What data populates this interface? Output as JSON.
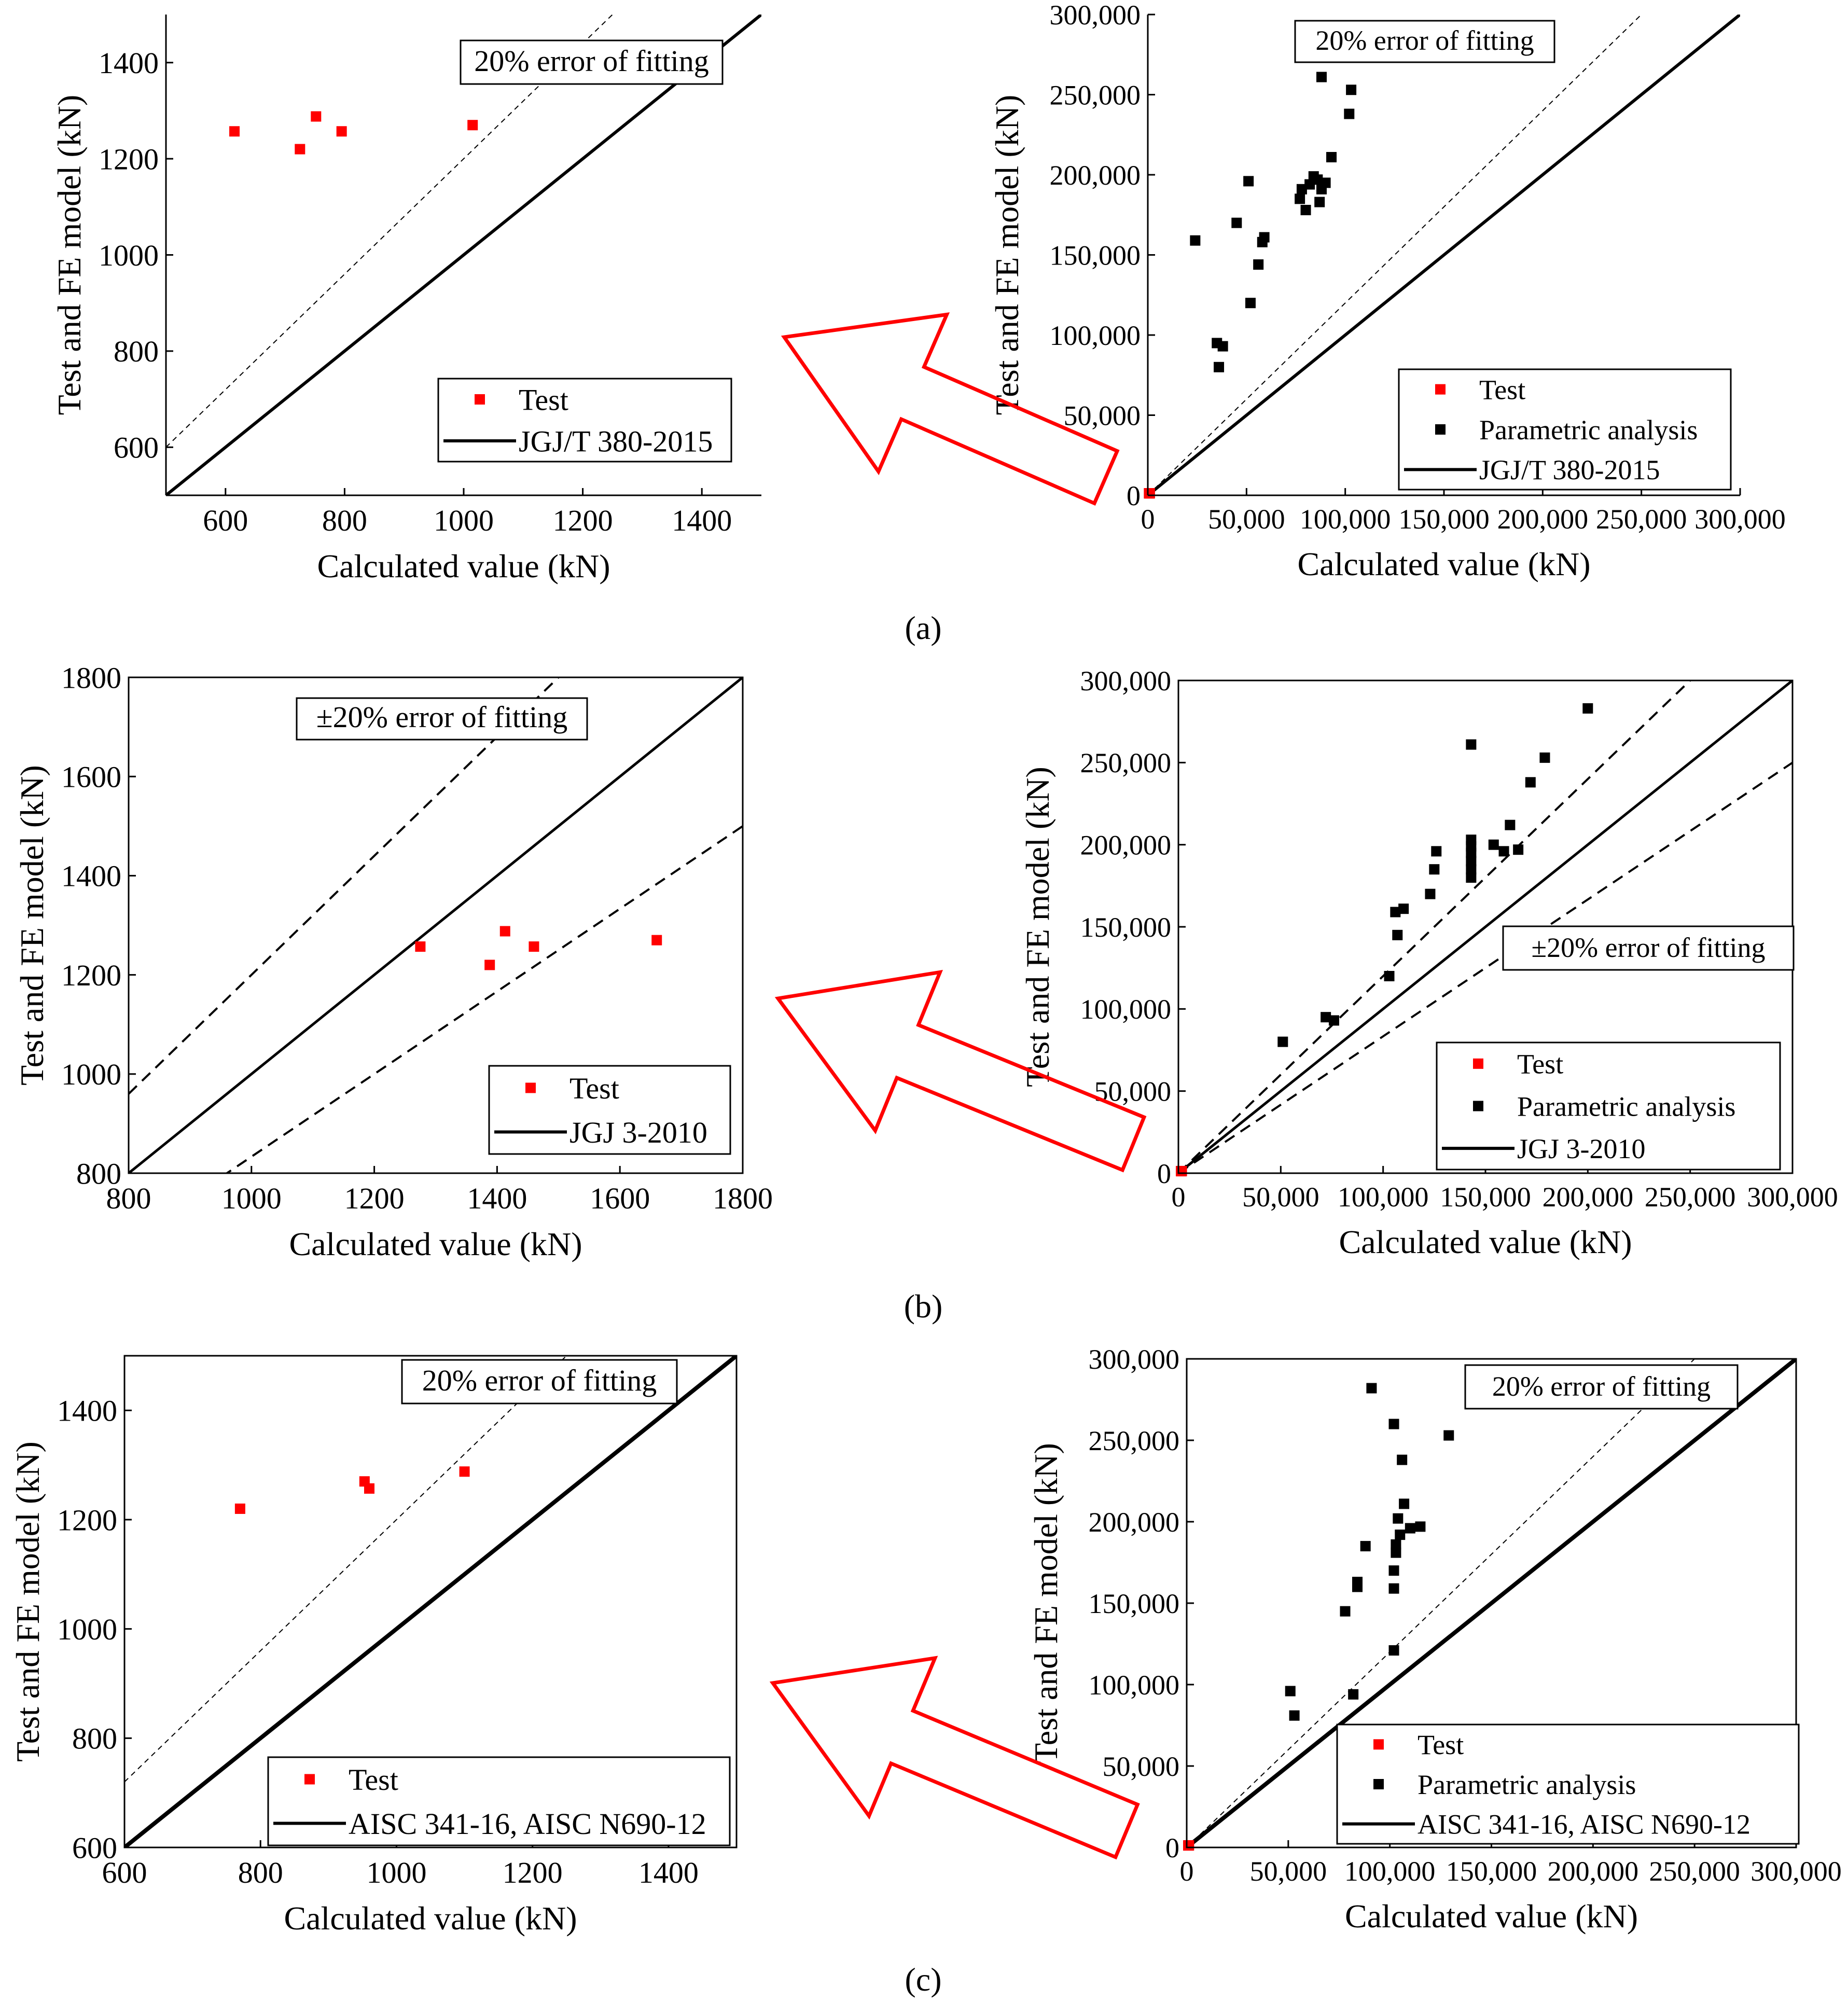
{
  "panel_labels": [
    "(a)",
    "(b)",
    "(c)"
  ],
  "colors": {
    "test": "#ff0000",
    "parametric": "#000000",
    "arrow": "#ff0000",
    "line": "#000000"
  },
  "chart_data": [
    {
      "id": "a-left",
      "type": "scatter",
      "xlabel": "Calculated value  (kN)",
      "ylabel": "Test and FE model (kN)",
      "xlim": [
        500,
        1500
      ],
      "ylim": [
        500,
        1500
      ],
      "xticks": [
        "600",
        "800",
        "1000",
        "1200",
        "1400"
      ],
      "yticks": [
        "600",
        "800",
        "1000",
        "1200",
        "1400"
      ],
      "annotation": "20% error of fitting",
      "legend": [
        "Test",
        "JGJ/T 380-2015"
      ],
      "series": [
        {
          "name": "Test",
          "x": [
            615,
            725,
            752,
            795,
            1015
          ],
          "y": [
            1257,
            1220,
            1288,
            1257,
            1270
          ]
        }
      ],
      "lines": [
        {
          "name": "JGJ/T 380-2015",
          "slope": 1.0
        },
        {
          "name": "20% error of fitting",
          "slope": 1.2
        }
      ]
    },
    {
      "id": "a-right",
      "type": "scatter",
      "xlabel": "Calculated value  (kN)",
      "ylabel": "Test and FE model (kN)",
      "xlim": [
        0,
        300000
      ],
      "ylim": [
        0,
        300000
      ],
      "xticks": [
        "0",
        "50,000",
        "100,000",
        "150,000",
        "200,000",
        "250,000",
        "300,000"
      ],
      "yticks": [
        "0",
        "50,000",
        "100,000",
        "150,000",
        "200,000",
        "250,000",
        "300,000"
      ],
      "annotation": "20% error of fitting",
      "legend": [
        "Test",
        "Parametric analysis",
        "JGJ/T 380-2015"
      ],
      "series": [
        {
          "name": "Test",
          "x": [
            615,
            725,
            752,
            795,
            1015
          ],
          "y": [
            1257,
            1220,
            1288,
            1257,
            1270
          ]
        },
        {
          "name": "Parametric analysis",
          "x": [
            24000,
            35000,
            36000,
            38000,
            45000,
            51000,
            52000,
            56000,
            58000,
            59000,
            77000,
            78000,
            80000,
            82000,
            84000,
            86000,
            87000,
            88000,
            88000,
            90000,
            93000,
            102000,
            103000
          ],
          "y": [
            159000,
            95000,
            80000,
            93000,
            170000,
            196000,
            120000,
            144000,
            158000,
            161000,
            185000,
            191000,
            178000,
            194000,
            199000,
            197000,
            183000,
            191000,
            261000,
            195000,
            211000,
            238000,
            253000
          ]
        }
      ],
      "lines": [
        {
          "name": "JGJ/T 380-2015",
          "slope": 1.0
        },
        {
          "name": "20% error of fitting",
          "slope": 1.2
        }
      ]
    },
    {
      "id": "b-left",
      "type": "scatter",
      "xlabel": "Calculated value  (kN)",
      "ylabel": "Test and FE model (kN)",
      "xlim": [
        800,
        1800
      ],
      "ylim": [
        800,
        1800
      ],
      "xticks": [
        "800",
        "1000",
        "1200",
        "1400",
        "1600",
        "1800"
      ],
      "yticks": [
        "800",
        "1000",
        "1200",
        "1400",
        "1600",
        "1800"
      ],
      "annotation": "±20% error of fitting",
      "legend": [
        "Test",
        "JGJ 3-2010"
      ],
      "series": [
        {
          "name": "Test",
          "x": [
            1275,
            1388,
            1413,
            1460,
            1660
          ],
          "y": [
            1257,
            1220,
            1288,
            1257,
            1270
          ]
        }
      ],
      "lines": [
        {
          "name": "JGJ 3-2010",
          "slope": 1.0
        },
        {
          "name": "+20% error of fitting",
          "slope": 1.2
        },
        {
          "name": "-20% error of fitting",
          "slope": 0.8333
        }
      ]
    },
    {
      "id": "b-right",
      "type": "scatter",
      "xlabel": "Calculated value  (kN)",
      "ylabel": "Test and FE model (kN)",
      "xlim": [
        0,
        300000
      ],
      "ylim": [
        0,
        300000
      ],
      "xticks": [
        "0",
        "50,000",
        "100,000",
        "150,000",
        "200,000",
        "250,000",
        "300,000"
      ],
      "yticks": [
        "0",
        "50,000",
        "100,000",
        "150,000",
        "200,000",
        "250,000",
        "300,000"
      ],
      "annotation": "±20% error of fitting",
      "legend": [
        "Test",
        "Parametric analysis",
        "JGJ 3-2010"
      ],
      "series": [
        {
          "name": "Test",
          "x": [
            1275,
            1388,
            1413,
            1460,
            1660
          ],
          "y": [
            1257,
            1220,
            1288,
            1257,
            1270
          ]
        },
        {
          "name": "Parametric analysis",
          "x": [
            51000,
            72000,
            76000,
            103000,
            106000,
            107000,
            110000,
            123000,
            125000,
            126000,
            143000,
            143000,
            143000,
            143000,
            143000,
            143000,
            143000,
            154000,
            159000,
            162000,
            166000,
            172000,
            179000,
            200000
          ],
          "y": [
            80000,
            95000,
            93000,
            120000,
            159000,
            145000,
            161000,
            170000,
            185000,
            196000,
            261000,
            203000,
            199000,
            195000,
            190000,
            185000,
            180000,
            200000,
            196000,
            212000,
            197000,
            238000,
            253000,
            283000
          ]
        }
      ],
      "lines": [
        {
          "name": "JGJ 3-2010",
          "slope": 1.0
        },
        {
          "name": "+20% error of fitting",
          "slope": 1.2
        },
        {
          "name": "-20% error of fitting",
          "slope": 0.8333
        }
      ]
    },
    {
      "id": "c-left",
      "type": "scatter",
      "xlabel": "Calculated value  (kN)",
      "ylabel": "Test and FE model (kN)",
      "xlim": [
        600,
        1500
      ],
      "ylim": [
        600,
        1500
      ],
      "xticks": [
        "600",
        "800",
        "1000",
        "1200",
        "1400"
      ],
      "yticks": [
        "600",
        "800",
        "1000",
        "1200",
        "1400"
      ],
      "annotation": "20% error of fitting",
      "legend": [
        "Test",
        "AISC 341-16, AISC N690-12"
      ],
      "series": [
        {
          "name": "Test",
          "x": [
            770,
            953,
            960,
            1100
          ],
          "y": [
            1220,
            1270,
            1257,
            1288
          ]
        }
      ],
      "lines": [
        {
          "name": "AISC 341-16, AISC N690-12",
          "slope": 1.0
        },
        {
          "name": "20% error of fitting",
          "slope": 1.2
        }
      ]
    },
    {
      "id": "c-right",
      "type": "scatter",
      "xlabel": "Calculated value  (kN)",
      "ylabel": "Test and FE model (kN)",
      "xlim": [
        0,
        300000
      ],
      "ylim": [
        0,
        300000
      ],
      "xticks": [
        "0",
        "50,000",
        "100,000",
        "150,000",
        "200,000",
        "250,000",
        "300,000"
      ],
      "yticks": [
        "0",
        "50,000",
        "100,000",
        "150,000",
        "200,000",
        "250,000",
        "300,000"
      ],
      "annotation": "20% error of fitting",
      "legend": [
        "Test",
        "Parametric analysis",
        "AISC 341-16, AISC N690-12"
      ],
      "series": [
        {
          "name": "Test",
          "x": [
            770,
            953,
            960,
            1100
          ],
          "y": [
            1220,
            1270,
            1257,
            1288
          ]
        },
        {
          "name": "Parametric analysis",
          "x": [
            51000,
            53000,
            78000,
            82000,
            84000,
            84000,
            88000,
            91000,
            102000,
            102000,
            102000,
            102000,
            103000,
            103000,
            104000,
            105000,
            106000,
            107000,
            110000,
            115000,
            129000
          ],
          "y": [
            96000,
            81000,
            145000,
            94000,
            163000,
            160000,
            185000,
            282000,
            121000,
            159000,
            170000,
            260000,
            181000,
            186000,
            202000,
            192000,
            238000,
            211000,
            196000,
            197000,
            253000
          ]
        }
      ],
      "lines": [
        {
          "name": "AISC 341-16, AISC N690-12",
          "slope": 1.0
        },
        {
          "name": "20% error of fitting",
          "slope": 1.2
        }
      ]
    }
  ]
}
